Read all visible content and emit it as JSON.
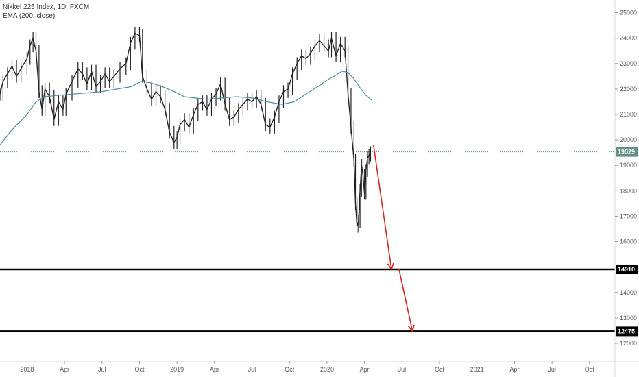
{
  "legend": {
    "symbol_line": "Nikkei 225 Index, 1D, FXCM",
    "indicator_line": "EMA (200, close)"
  },
  "chart_data": {
    "type": "line",
    "title": "Nikkei 225 Index, 1D, FXCM",
    "ylim": [
      11300,
      25500
    ],
    "y_ticks": [
      12000,
      13000,
      14000,
      15000,
      16000,
      17000,
      18000,
      19000,
      20000,
      21000,
      22000,
      23000,
      24000,
      25000
    ],
    "x_ticks": [
      {
        "label": "2018",
        "t": 2018.0
      },
      {
        "label": "Apr",
        "t": 2018.25
      },
      {
        "label": "Jul",
        "t": 2018.5
      },
      {
        "label": "Oct",
        "t": 2018.75
      },
      {
        "label": "2019",
        "t": 2019.0
      },
      {
        "label": "Apr",
        "t": 2019.25
      },
      {
        "label": "Jul",
        "t": 2019.5
      },
      {
        "label": "Oct",
        "t": 2019.75
      },
      {
        "label": "2020",
        "t": 2020.0
      },
      {
        "label": "Apr",
        "t": 2020.25
      },
      {
        "label": "Jul",
        "t": 2020.5
      },
      {
        "label": "Oct",
        "t": 2020.75
      },
      {
        "label": "2021",
        "t": 2021.0
      },
      {
        "label": "Apr",
        "t": 2021.25
      },
      {
        "label": "Jul",
        "t": 2021.5
      },
      {
        "label": "Oct",
        "t": 2021.75
      }
    ],
    "x_range": [
      2017.82,
      2021.92
    ],
    "series": [
      {
        "name": "Nikkei 225 Index",
        "color": "#222222",
        "points": [
          [
            2017.82,
            21800
          ],
          [
            2017.84,
            22300
          ],
          [
            2017.87,
            22600
          ],
          [
            2017.9,
            22900
          ],
          [
            2017.93,
            22500
          ],
          [
            2017.96,
            22800
          ],
          [
            2018.0,
            23200
          ],
          [
            2018.02,
            23700
          ],
          [
            2018.04,
            24000
          ],
          [
            2018.06,
            23500
          ],
          [
            2018.08,
            21900
          ],
          [
            2018.1,
            21200
          ],
          [
            2018.12,
            22000
          ],
          [
            2018.15,
            21700
          ],
          [
            2018.18,
            20800
          ],
          [
            2018.21,
            21500
          ],
          [
            2018.24,
            21200
          ],
          [
            2018.26,
            21800
          ],
          [
            2018.3,
            22300
          ],
          [
            2018.34,
            22800
          ],
          [
            2018.37,
            22600
          ],
          [
            2018.4,
            22200
          ],
          [
            2018.43,
            22700
          ],
          [
            2018.46,
            22100
          ],
          [
            2018.49,
            22300
          ],
          [
            2018.52,
            22600
          ],
          [
            2018.55,
            22300
          ],
          [
            2018.58,
            22500
          ],
          [
            2018.62,
            22800
          ],
          [
            2018.66,
            23000
          ],
          [
            2018.69,
            23800
          ],
          [
            2018.72,
            24200
          ],
          [
            2018.75,
            24100
          ],
          [
            2018.77,
            22500
          ],
          [
            2018.8,
            22000
          ],
          [
            2018.83,
            21600
          ],
          [
            2018.86,
            21900
          ],
          [
            2018.89,
            21700
          ],
          [
            2018.92,
            21200
          ],
          [
            2018.95,
            20300
          ],
          [
            2018.98,
            19900
          ],
          [
            2019.0,
            20100
          ],
          [
            2019.02,
            20600
          ],
          [
            2019.05,
            20800
          ],
          [
            2019.08,
            20500
          ],
          [
            2019.11,
            21000
          ],
          [
            2019.14,
            21400
          ],
          [
            2019.17,
            21500
          ],
          [
            2019.2,
            21200
          ],
          [
            2019.23,
            21600
          ],
          [
            2019.26,
            21800
          ],
          [
            2019.29,
            22200
          ],
          [
            2019.32,
            21400
          ],
          [
            2019.35,
            20800
          ],
          [
            2019.38,
            20900
          ],
          [
            2019.41,
            21200
          ],
          [
            2019.44,
            21400
          ],
          [
            2019.47,
            21600
          ],
          [
            2019.5,
            21500
          ],
          [
            2019.53,
            21700
          ],
          [
            2019.56,
            21400
          ],
          [
            2019.59,
            20600
          ],
          [
            2019.62,
            20500
          ],
          [
            2019.65,
            20900
          ],
          [
            2019.68,
            21500
          ],
          [
            2019.71,
            21900
          ],
          [
            2019.74,
            22000
          ],
          [
            2019.77,
            22600
          ],
          [
            2019.8,
            23000
          ],
          [
            2019.83,
            23300
          ],
          [
            2019.86,
            23200
          ],
          [
            2019.89,
            23400
          ],
          [
            2019.92,
            23700
          ],
          [
            2019.95,
            23900
          ],
          [
            2019.98,
            23700
          ],
          [
            2020.01,
            23500
          ],
          [
            2020.03,
            24000
          ],
          [
            2020.06,
            23300
          ],
          [
            2020.09,
            23800
          ],
          [
            2020.12,
            23500
          ],
          [
            2020.14,
            21800
          ],
          [
            2020.16,
            20500
          ],
          [
            2020.18,
            19200
          ],
          [
            2020.19,
            17500
          ],
          [
            2020.2,
            16600
          ],
          [
            2020.21,
            16800
          ],
          [
            2020.22,
            18000
          ],
          [
            2020.23,
            19000
          ],
          [
            2020.24,
            18600
          ],
          [
            2020.25,
            17900
          ],
          [
            2020.26,
            18800
          ],
          [
            2020.27,
            19300
          ],
          [
            2020.28,
            19400
          ],
          [
            2020.29,
            19500
          ]
        ]
      },
      {
        "name": "EMA (200, close)",
        "color": "#4d8c9a",
        "points": [
          [
            2017.82,
            19800
          ],
          [
            2017.9,
            20400
          ],
          [
            2018.0,
            21000
          ],
          [
            2018.06,
            21500
          ],
          [
            2018.12,
            21700
          ],
          [
            2018.2,
            21750
          ],
          [
            2018.3,
            21800
          ],
          [
            2018.4,
            21850
          ],
          [
            2018.5,
            21900
          ],
          [
            2018.6,
            22000
          ],
          [
            2018.7,
            22100
          ],
          [
            2018.76,
            22300
          ],
          [
            2018.82,
            22250
          ],
          [
            2018.9,
            22100
          ],
          [
            2018.98,
            21900
          ],
          [
            2019.05,
            21700
          ],
          [
            2019.12,
            21650
          ],
          [
            2019.2,
            21600
          ],
          [
            2019.3,
            21650
          ],
          [
            2019.4,
            21700
          ],
          [
            2019.5,
            21650
          ],
          [
            2019.6,
            21500
          ],
          [
            2019.7,
            21400
          ],
          [
            2019.78,
            21500
          ],
          [
            2019.86,
            21800
          ],
          [
            2019.94,
            22100
          ],
          [
            2020.0,
            22350
          ],
          [
            2020.06,
            22550
          ],
          [
            2020.1,
            22700
          ],
          [
            2020.14,
            22650
          ],
          [
            2020.18,
            22400
          ],
          [
            2020.22,
            22050
          ],
          [
            2020.26,
            21750
          ],
          [
            2020.3,
            21550
          ]
        ]
      }
    ],
    "price_line": {
      "value": 19529,
      "label": "19529",
      "color": "#5f9183"
    },
    "horizontal_levels": [
      {
        "value": 14910,
        "label": "14910"
      },
      {
        "value": 12475,
        "label": "12475"
      }
    ],
    "arrows": [
      {
        "from": [
          2020.31,
          19800
        ],
        "to": [
          2020.43,
          14910
        ]
      },
      {
        "from": [
          2020.48,
          14910
        ],
        "to": [
          2020.57,
          12475
        ]
      }
    ],
    "arrow_color": "#d32424",
    "level_color": "#000000",
    "grid": false
  }
}
